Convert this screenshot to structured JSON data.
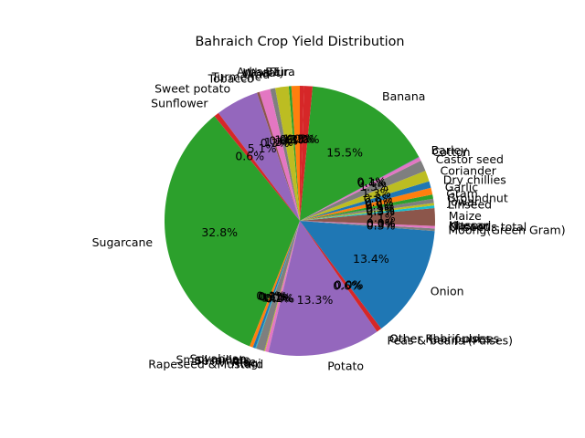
{
  "chart_data": {
    "type": "pie",
    "title": "Bahraich Crop Yield Distribution",
    "start_angle_deg": 90,
    "direction": "counterclockwise",
    "slices": [
      {
        "label": "Bajra",
        "value": 1.0,
        "color": "#ff7f0e"
      },
      {
        "label": "Arhar/Tur",
        "value": 0.3,
        "color": "#2ca02c"
      },
      {
        "label": "Wheat",
        "value": 1.6,
        "color": "#bcbd22"
      },
      {
        "label": "Urad",
        "value": 0.6,
        "color": "#7f7f7f"
      },
      {
        "label": "Turmeric",
        "value": 1.3,
        "color": "#e377c2"
      },
      {
        "label": "Tobacco",
        "value": 0.3,
        "color": "#8c564b"
      },
      {
        "label": "Sweet potato",
        "value": 5.1,
        "color": "#9467bd"
      },
      {
        "label": "Sunflower",
        "value": 0.6,
        "color": "#d62728"
      },
      {
        "label": "Sugarcane",
        "value": 32.8,
        "color": "#2ca02c"
      },
      {
        "label": "Soyabean",
        "value": 0.4,
        "color": "#ff7f0e"
      },
      {
        "label": "Small millets",
        "value": 0.3,
        "color": "#1f77b4"
      },
      {
        "label": "Sesamum",
        "value": 0.1,
        "color": "#17becf"
      },
      {
        "label": "Rice",
        "value": 1.0,
        "color": "#7f7f7f"
      },
      {
        "label": "Ragi",
        "value": 0.1,
        "color": "#bcbd22"
      },
      {
        "label": "Rapeseed &Mustard",
        "value": 0.4,
        "color": "#e377c2"
      },
      {
        "label": "Potato",
        "value": 13.3,
        "color": "#9467bd"
      },
      {
        "label": "Peas & beans (Pulses)",
        "value": 0.6,
        "color": "#d62728"
      },
      {
        "label": "Other Rabi pulses",
        "value": 0.0,
        "color": "#2ca02c"
      },
      {
        "label": "Other Kharif pulses",
        "value": 0.0,
        "color": "#ff7f0e"
      },
      {
        "label": "Onion",
        "value": 13.4,
        "color": "#1f77b4"
      },
      {
        "label": "Moong(Green Gram)",
        "value": 0.3,
        "color": "#7f7f7f"
      },
      {
        "label": "Oilseeds total",
        "value": 0.3,
        "color": "#e377c2"
      },
      {
        "label": "Masoor",
        "value": 0.0,
        "color": "#17becf"
      },
      {
        "label": "Khesari",
        "value": 0.0,
        "color": "#bcbd22"
      },
      {
        "label": "Maize",
        "value": 2.1,
        "color": "#8c564b"
      },
      {
        "label": "Linseed",
        "value": 0.3,
        "color": "#17becf"
      },
      {
        "label": "Jowar",
        "value": 0.3,
        "color": "#bcbd22"
      },
      {
        "label": "Groundnut",
        "value": 0.5,
        "color": "#7f7f7f"
      },
      {
        "label": "Gram",
        "value": 0.5,
        "color": "#2ca02c"
      },
      {
        "label": "Garlic",
        "value": 0.8,
        "color": "#ff7f0e"
      },
      {
        "label": "Dry chillies",
        "value": 0.8,
        "color": "#1f77b4"
      },
      {
        "label": "Coriander",
        "value": 1.3,
        "color": "#bcbd22"
      },
      {
        "label": "Castor seed",
        "value": 1.3,
        "color": "#7f7f7f"
      },
      {
        "label": "Cotton",
        "value": 0.4,
        "color": "#e377c2"
      },
      {
        "label": "Barley",
        "value": 0.1,
        "color": "#9467bd"
      },
      {
        "label": "Banana",
        "value": 15.5,
        "color": "#2ca02c"
      },
      {
        "label": "Unlabeled",
        "value": 1.0,
        "color": "#d62728"
      },
      {
        "label": "Unlabeled",
        "value": 0.5,
        "color": "#d62728"
      }
    ]
  }
}
